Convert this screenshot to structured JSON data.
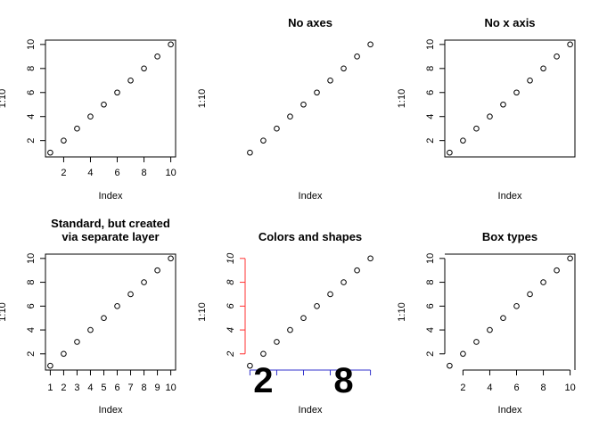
{
  "panels": [
    {
      "title": "",
      "xlabel": "Index",
      "ylabel": "1:10",
      "x": [
        1,
        2,
        3,
        4,
        5,
        6,
        7,
        8,
        9,
        10
      ],
      "y": [
        1,
        2,
        3,
        4,
        5,
        6,
        7,
        8,
        9,
        10
      ],
      "xticks": [
        "2",
        "4",
        "6",
        "8",
        "10"
      ],
      "yticks": [
        "2",
        "4",
        "6",
        "8",
        "10"
      ],
      "show_x_axis": true,
      "show_y_axis": true,
      "box": "full"
    },
    {
      "title": "No axes",
      "xlabel": "Index",
      "ylabel": "1:10",
      "x": [
        1,
        2,
        3,
        4,
        5,
        6,
        7,
        8,
        9,
        10
      ],
      "y": [
        1,
        2,
        3,
        4,
        5,
        6,
        7,
        8,
        9,
        10
      ],
      "xticks": [],
      "yticks": [],
      "show_x_axis": false,
      "show_y_axis": false,
      "box": "none"
    },
    {
      "title": "No x axis",
      "xlabel": "Index",
      "ylabel": "1:10",
      "x": [
        1,
        2,
        3,
        4,
        5,
        6,
        7,
        8,
        9,
        10
      ],
      "y": [
        1,
        2,
        3,
        4,
        5,
        6,
        7,
        8,
        9,
        10
      ],
      "xticks": [],
      "yticks": [
        "2",
        "4",
        "6",
        "8",
        "10"
      ],
      "show_x_axis": false,
      "show_y_axis": true,
      "box": "full"
    },
    {
      "title": "Standard, but created\nvia separate layer",
      "xlabel": "Index",
      "ylabel": "1:10",
      "x": [
        1,
        2,
        3,
        4,
        5,
        6,
        7,
        8,
        9,
        10
      ],
      "y": [
        1,
        2,
        3,
        4,
        5,
        6,
        7,
        8,
        9,
        10
      ],
      "xticks": [
        "1",
        "2",
        "3",
        "4",
        "5",
        "6",
        "7",
        "8",
        "9",
        "10"
      ],
      "yticks": [
        "2",
        "4",
        "6",
        "8",
        "10"
      ],
      "show_x_axis": true,
      "show_y_axis": true,
      "box": "full"
    },
    {
      "title": "Colors and shapes",
      "xlabel": "Index",
      "ylabel": "1:10",
      "x": [
        1,
        2,
        3,
        4,
        5,
        6,
        7,
        8,
        9,
        10
      ],
      "y": [
        1,
        2,
        3,
        4,
        5,
        6,
        7,
        8,
        9,
        10
      ],
      "xticks": [
        "2",
        "8"
      ],
      "yticks": [
        "2",
        "4",
        "6",
        "8",
        "10"
      ],
      "show_x_axis": true,
      "show_y_axis": true,
      "box": "none",
      "x_axis_color": "#3333cc",
      "y_axis_color": "#ff3333",
      "x_tick_style": "large-bold",
      "y_tick_style": "italic"
    },
    {
      "title": "Box types",
      "xlabel": "Index",
      "ylabel": "1:10",
      "x": [
        1,
        2,
        3,
        4,
        5,
        6,
        7,
        8,
        9,
        10
      ],
      "y": [
        1,
        2,
        3,
        4,
        5,
        6,
        7,
        8,
        9,
        10
      ],
      "xticks": [
        "2",
        "4",
        "6",
        "8",
        "10"
      ],
      "yticks": [
        "2",
        "4",
        "6",
        "8",
        "10"
      ],
      "show_x_axis": true,
      "show_y_axis": true,
      "box": "top-right-open-bottom"
    }
  ],
  "chart_data": [
    {
      "type": "scatter",
      "title": "",
      "xlabel": "Index",
      "ylabel": "1:10",
      "x": [
        1,
        2,
        3,
        4,
        5,
        6,
        7,
        8,
        9,
        10
      ],
      "y": [
        1,
        2,
        3,
        4,
        5,
        6,
        7,
        8,
        9,
        10
      ],
      "xlim": [
        1,
        10
      ],
      "ylim": [
        1,
        10
      ]
    },
    {
      "type": "scatter",
      "title": "No axes",
      "xlabel": "Index",
      "ylabel": "1:10",
      "x": [
        1,
        2,
        3,
        4,
        5,
        6,
        7,
        8,
        9,
        10
      ],
      "y": [
        1,
        2,
        3,
        4,
        5,
        6,
        7,
        8,
        9,
        10
      ],
      "xlim": [
        1,
        10
      ],
      "ylim": [
        1,
        10
      ]
    },
    {
      "type": "scatter",
      "title": "No x axis",
      "xlabel": "Index",
      "ylabel": "1:10",
      "x": [
        1,
        2,
        3,
        4,
        5,
        6,
        7,
        8,
        9,
        10
      ],
      "y": [
        1,
        2,
        3,
        4,
        5,
        6,
        7,
        8,
        9,
        10
      ],
      "xlim": [
        1,
        10
      ],
      "ylim": [
        1,
        10
      ]
    },
    {
      "type": "scatter",
      "title": "Standard, but created via separate layer",
      "xlabel": "Index",
      "ylabel": "1:10",
      "x": [
        1,
        2,
        3,
        4,
        5,
        6,
        7,
        8,
        9,
        10
      ],
      "y": [
        1,
        2,
        3,
        4,
        5,
        6,
        7,
        8,
        9,
        10
      ],
      "xlim": [
        1,
        10
      ],
      "ylim": [
        1,
        10
      ]
    },
    {
      "type": "scatter",
      "title": "Colors and shapes",
      "xlabel": "Index",
      "ylabel": "1:10",
      "x": [
        1,
        2,
        3,
        4,
        5,
        6,
        7,
        8,
        9,
        10
      ],
      "y": [
        1,
        2,
        3,
        4,
        5,
        6,
        7,
        8,
        9,
        10
      ],
      "xlim": [
        1,
        10
      ],
      "ylim": [
        1,
        10
      ]
    },
    {
      "type": "scatter",
      "title": "Box types",
      "xlabel": "Index",
      "ylabel": "1:10",
      "x": [
        1,
        2,
        3,
        4,
        5,
        6,
        7,
        8,
        9,
        10
      ],
      "y": [
        1,
        2,
        3,
        4,
        5,
        6,
        7,
        8,
        9,
        10
      ],
      "xlim": [
        1,
        10
      ],
      "ylim": [
        1,
        10
      ]
    }
  ]
}
